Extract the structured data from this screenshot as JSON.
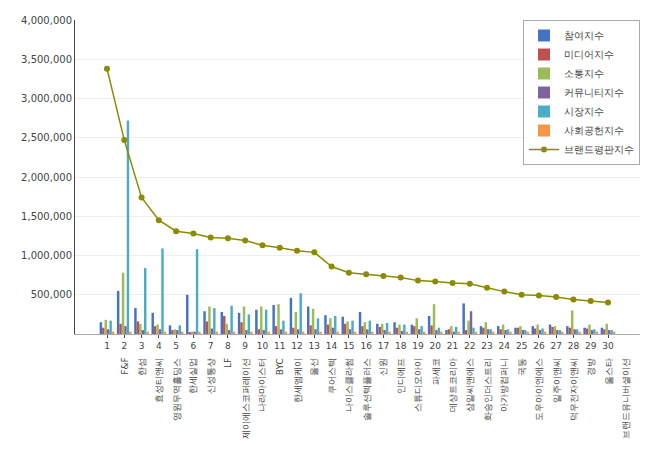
{
  "chart_data": {
    "type": "bar",
    "categories": [
      "1",
      "2",
      "3",
      "4",
      "5",
      "6",
      "7",
      "8",
      "9",
      "10",
      "11",
      "12",
      "13",
      "14",
      "15",
      "16",
      "17",
      "18",
      "19",
      "20",
      "21",
      "22",
      "23",
      "24",
      "25",
      "26",
      "27",
      "28",
      "29",
      "30"
    ],
    "annotations": [
      "F&F",
      "한섬",
      "효성티앤씨",
      "영원무역홀딩스",
      "한세실업",
      "신성통상",
      "LF",
      "제이에스코퍼레이션",
      "나라마이스터",
      "BYC",
      "한세엠케이",
      "올선",
      "쿠어스텍",
      "나이스클라썸",
      "솔루션텍플러스",
      "신원",
      "인디에프",
      "스튜디오아이",
      "파세코",
      "데상트코리아",
      "삼일씨앤에스",
      "화승인더스트리",
      "아가방컴퍼니",
      "국동",
      "도우아이엔에스",
      "일주이앤씨",
      "덕우전자이앤씨",
      "경방",
      "울스타",
      "브랜드유니버셜이션"
    ],
    "series": [
      {
        "name": "참여지수",
        "color": "#4472C4",
        "values": [
          150000,
          550000,
          330000,
          270000,
          110000,
          500000,
          290000,
          280000,
          270000,
          310000,
          370000,
          460000,
          350000,
          240000,
          220000,
          280000,
          130000,
          150000,
          120000,
          230000,
          50000,
          390000,
          100000,
          100000,
          80000,
          100000,
          120000,
          100000,
          80000,
          80000
        ]
      },
      {
        "name": "미디어지수",
        "color": "#C0504D",
        "values": [
          80000,
          130000,
          160000,
          100000,
          50000,
          20000,
          160000,
          230000,
          150000,
          60000,
          100000,
          80000,
          110000,
          120000,
          130000,
          100000,
          90000,
          80000,
          100000,
          110000,
          60000,
          50000,
          80000,
          60000,
          80000,
          70000,
          90000,
          80000,
          70000,
          60000
        ]
      },
      {
        "name": "소통지수",
        "color": "#9BBB59",
        "values": [
          180000,
          780000,
          130000,
          120000,
          60000,
          30000,
          350000,
          130000,
          350000,
          350000,
          380000,
          280000,
          320000,
          200000,
          160000,
          150000,
          130000,
          120000,
          200000,
          380000,
          100000,
          170000,
          150000,
          120000,
          100000,
          120000,
          100000,
          300000,
          120000,
          130000
        ]
      },
      {
        "name": "커뮤니티지수",
        "color": "#8064A2",
        "values": [
          60000,
          100000,
          50000,
          60000,
          50000,
          30000,
          70000,
          50000,
          50000,
          50000,
          60000,
          60000,
          60000,
          80000,
          60000,
          60000,
          50000,
          40000,
          60000,
          50000,
          30000,
          290000,
          60000,
          50000,
          50000,
          50000,
          50000,
          60000,
          50000,
          50000
        ]
      },
      {
        "name": "시장지수",
        "color": "#4BACC6",
        "values": [
          170000,
          2720000,
          840000,
          1090000,
          110000,
          1080000,
          330000,
          360000,
          250000,
          310000,
          170000,
          520000,
          200000,
          230000,
          170000,
          170000,
          140000,
          120000,
          100000,
          80000,
          90000,
          80000,
          60000,
          60000,
          50000,
          70000,
          50000,
          60000,
          60000,
          50000
        ]
      },
      {
        "name": "사회공헌지수",
        "color": "#F79646",
        "values": [
          30000,
          30000,
          30000,
          30000,
          30000,
          30000,
          30000,
          30000,
          30000,
          30000,
          30000,
          30000,
          30000,
          30000,
          30000,
          30000,
          30000,
          30000,
          30000,
          30000,
          30000,
          30000,
          30000,
          30000,
          30000,
          30000,
          30000,
          30000,
          30000,
          30000
        ]
      },
      {
        "name": "브랜드평판지수",
        "type": "line",
        "color": "#8B8B00",
        "marker": "o",
        "values": [
          3380000,
          2470000,
          1740000,
          1450000,
          1310000,
          1280000,
          1230000,
          1220000,
          1190000,
          1130000,
          1100000,
          1060000,
          1040000,
          860000,
          780000,
          760000,
          740000,
          720000,
          680000,
          670000,
          650000,
          640000,
          590000,
          540000,
          500000,
          490000,
          470000,
          440000,
          420000,
          400000
        ]
      }
    ],
    "ylim": [
      0,
      4000000
    ],
    "yticks": [
      {
        "value": 500000,
        "label": "500,000"
      },
      {
        "value": 1000000,
        "label": "1,000,000"
      },
      {
        "value": 1500000,
        "label": "1,500,000"
      },
      {
        "value": 2000000,
        "label": "2,000,000"
      },
      {
        "value": 2500000,
        "label": "2,500,000"
      },
      {
        "value": 3000000,
        "label": "3,000,000"
      },
      {
        "value": 3500000,
        "label": "3,500,000"
      },
      {
        "value": 4000000,
        "label": "4,000,000"
      }
    ],
    "grid": true,
    "legend": "upper right"
  }
}
